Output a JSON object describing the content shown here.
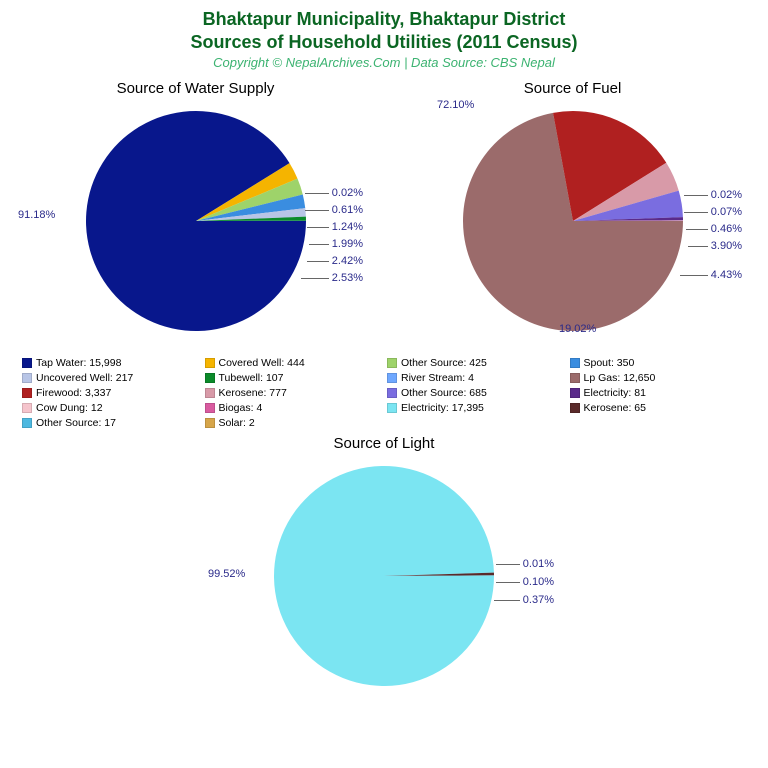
{
  "title": {
    "line1": "Bhaktapur Municipality, Bhaktapur District",
    "line2": "Sources of Household Utilities (2011 Census)",
    "color": "#0b6623",
    "fontsize": 18,
    "font_weight": "bold"
  },
  "subtitle": {
    "text": "Copyright © NepalArchives.Com | Data Source: CBS Nepal",
    "color": "#3cb371",
    "fontsize": 13,
    "font_style": "italic"
  },
  "background_color": "#ffffff",
  "label_text_color": "#2a2a8a",
  "label_fontsize": 11,
  "legend_fontsize": 10.5,
  "chart_title_fontsize": 15,
  "chart_title_color": "#000000",
  "pie_radius": 110,
  "charts": {
    "water": {
      "title": "Source of Water Supply",
      "type": "pie",
      "slices": [
        {
          "label": "Tap Water",
          "value": 15998,
          "pct": "91.18%",
          "color": "#08178c"
        },
        {
          "label": "Covered Well",
          "value": 444,
          "pct": "2.53%",
          "color": "#f5b400"
        },
        {
          "label": "Other Source",
          "value": 425,
          "pct": "2.42%",
          "color": "#9ed36a"
        },
        {
          "label": "Spout",
          "value": 350,
          "pct": "1.99%",
          "color": "#3a8de0"
        },
        {
          "label": "Uncovered Well",
          "value": 217,
          "pct": "1.24%",
          "color": "#b8c5e6"
        },
        {
          "label": "Tubewell",
          "value": 107,
          "pct": "0.61%",
          "color": "#0b8a2a"
        },
        {
          "label": "River Stream",
          "value": 4,
          "pct": "0.02%",
          "color": "#6fa8ff"
        }
      ]
    },
    "fuel": {
      "title": "Source of Fuel",
      "type": "pie",
      "slices": [
        {
          "label": "Lp Gas",
          "value": 12650,
          "pct": "72.10%",
          "color": "#9b6b6b"
        },
        {
          "label": "Firewood",
          "value": 3337,
          "pct": "19.02%",
          "color": "#b02020"
        },
        {
          "label": "Kerosene",
          "value": 777,
          "pct": "4.43%",
          "color": "#d89aa8"
        },
        {
          "label": "Other Source",
          "value": 685,
          "pct": "3.90%",
          "color": "#7a6de0"
        },
        {
          "label": "Electricity",
          "value": 81,
          "pct": "0.46%",
          "color": "#5a2a8a"
        },
        {
          "label": "Cow Dung",
          "value": 12,
          "pct": "0.07%",
          "color": "#f5c4cc"
        },
        {
          "label": "Biogas",
          "value": 4,
          "pct": "0.02%",
          "color": "#d95ba0"
        }
      ]
    },
    "light": {
      "title": "Source of Light",
      "type": "pie",
      "slices": [
        {
          "label": "Electricity",
          "value": 17395,
          "pct": "99.52%",
          "color": "#7be5f2"
        },
        {
          "label": "Kerosene",
          "value": 65,
          "pct": "0.37%",
          "color": "#5a2a2a"
        },
        {
          "label": "Other Source",
          "value": 17,
          "pct": "0.10%",
          "color": "#4db8e0"
        },
        {
          "label": "Solar",
          "value": 2,
          "pct": "0.01%",
          "color": "#d6a54a"
        }
      ]
    }
  },
  "legend": {
    "columns": 4,
    "items": [
      {
        "label": "Tap Water: 15,998",
        "color": "#08178c"
      },
      {
        "label": "Covered Well: 444",
        "color": "#f5b400"
      },
      {
        "label": "Other Source: 425",
        "color": "#9ed36a"
      },
      {
        "label": "Spout: 350",
        "color": "#3a8de0"
      },
      {
        "label": "Uncovered Well: 217",
        "color": "#b8c5e6"
      },
      {
        "label": "Tubewell: 107",
        "color": "#0b8a2a"
      },
      {
        "label": "River Stream: 4",
        "color": "#6fa8ff"
      },
      {
        "label": "Lp Gas: 12,650",
        "color": "#9b6b6b"
      },
      {
        "label": "Firewood: 3,337",
        "color": "#b02020"
      },
      {
        "label": "Kerosene: 777",
        "color": "#d89aa8"
      },
      {
        "label": "Other Source: 685",
        "color": "#7a6de0"
      },
      {
        "label": "Electricity: 81",
        "color": "#5a2a8a"
      },
      {
        "label": "Cow Dung: 12",
        "color": "#f5c4cc"
      },
      {
        "label": "Biogas: 4",
        "color": "#d95ba0"
      },
      {
        "label": "Electricity: 17,395",
        "color": "#7be5f2"
      },
      {
        "label": "Kerosene: 65",
        "color": "#5a2a2a"
      },
      {
        "label": "Other Source: 17",
        "color": "#4db8e0"
      },
      {
        "label": "Solar: 2",
        "color": "#d6a54a"
      }
    ]
  }
}
